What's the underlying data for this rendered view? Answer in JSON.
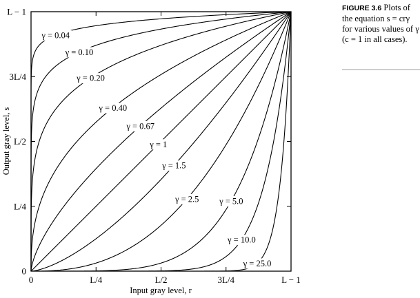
{
  "caption": {
    "label": "FIGURE 3.6",
    "text": "Plots of the equation s = crγ for various values of γ (c = 1 in all cases)."
  },
  "chart_data": {
    "type": "line",
    "title": "",
    "xlabel": "Input gray level, r",
    "ylabel": "Output gray level, s",
    "xlim": [
      0,
      1
    ],
    "ylim": [
      0,
      1
    ],
    "equation": "s = c r^γ, c = 1",
    "x_ticks": [
      "0",
      "L/4",
      "L/2",
      "3L/4",
      "L − 1"
    ],
    "y_ticks": [
      "0",
      "L/4",
      "L/2",
      "3L/4",
      "L − 1"
    ],
    "grid": false,
    "series": [
      {
        "name": "γ = 0.04",
        "gamma": 0.04
      },
      {
        "name": "γ = 0.10",
        "gamma": 0.1
      },
      {
        "name": "γ = 0.20",
        "gamma": 0.2
      },
      {
        "name": "γ = 0.40",
        "gamma": 0.4
      },
      {
        "name": "γ = 0.67",
        "gamma": 0.67
      },
      {
        "name": "γ = 1",
        "gamma": 1
      },
      {
        "name": "γ = 1.5",
        "gamma": 1.5
      },
      {
        "name": "γ = 2.5",
        "gamma": 2.5
      },
      {
        "name": "γ = 5.0",
        "gamma": 5.0
      },
      {
        "name": "γ = 10.0",
        "gamma": 10.0
      },
      {
        "name": "γ = 25.0",
        "gamma": 25.0
      }
    ]
  }
}
